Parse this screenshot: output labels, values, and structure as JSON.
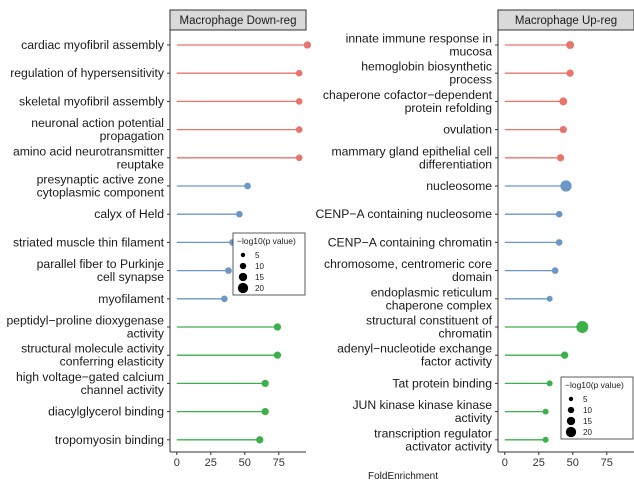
{
  "chart_data": [
    {
      "type": "lollipop",
      "title": "Macrophage Down-reg",
      "xlabel": "FoldEnrichment",
      "xlim": [
        -5,
        95
      ],
      "xticks": [
        0,
        25,
        50,
        75
      ],
      "size_legend": {
        "title": "−log10(p value)",
        "values": [
          5,
          10,
          15,
          20
        ]
      },
      "categories": [
        "cardiac myofibril assembly",
        "regulation of hypersensitivity",
        "skeletal myofibril assembly",
        "neuronal action potential\npropagation",
        "amino acid neurotransmitter\nreuptake",
        "presynaptic active zone\ncytoplasmic component",
        "calyx of Held",
        "striated muscle thin filament",
        "parallel fiber to Purkinje\ncell synapse",
        "myofilament",
        "peptidyl−proline dioxygenase\nactivity",
        "structural molecule activity\nconferring elasticity",
        "high voltage−gated calcium\nchannel activity",
        "diacylglycerol binding",
        "tropomyosin binding"
      ],
      "values": [
        96,
        90,
        90,
        90,
        90,
        52,
        46,
        41,
        38,
        35,
        74,
        74,
        65,
        65,
        61
      ],
      "neg_log10_p": [
        5,
        4,
        4,
        4,
        4,
        4,
        4,
        4,
        4,
        4,
        5,
        5,
        5,
        5,
        5
      ],
      "colors": [
        "#e8756b",
        "#e8756b",
        "#e8756b",
        "#e8756b",
        "#e8756b",
        "#6b96c8",
        "#6b96c8",
        "#6b96c8",
        "#6b96c8",
        "#6b96c8",
        "#3cb04a",
        "#3cb04a",
        "#3cb04a",
        "#3cb04a",
        "#3cb04a"
      ]
    },
    {
      "type": "lollipop",
      "title": "Macrophage Up-reg",
      "xlabel": "FoldEnrichment",
      "xlim": [
        -5,
        95
      ],
      "xticks": [
        0,
        25,
        50,
        75
      ],
      "size_legend": {
        "title": "−log10(p value)",
        "values": [
          5,
          10,
          15,
          20
        ]
      },
      "categories": [
        "innate immune response in\nmucosa",
        "hemoglobin biosynthetic\nprocess",
        "chaperone cofactor−dependent\nprotein refolding",
        "ovulation",
        "mammary gland epithelial cell\ndifferentiation",
        "nucleosome",
        "CENP−A containing nucleosome",
        "CENP−A containing chromatin",
        "chromosome, centromeric core\ndomain",
        "endoplasmic reticulum\nchaperone complex",
        "structural constituent of\nchromatin",
        "adenyl−nucleotide exchange\nfactor activity",
        "Tat protein binding",
        "JUN kinase kinase kinase\nactivity",
        "transcription regulator\nactivator activity"
      ],
      "values": [
        48,
        48,
        43,
        43,
        41,
        45,
        40,
        40,
        37,
        33,
        57,
        44,
        33,
        30,
        30
      ],
      "neg_log10_p": [
        6,
        5,
        6,
        5,
        5,
        11,
        4,
        4,
        4,
        3,
        12,
        5,
        3,
        3,
        3
      ],
      "colors": [
        "#e8756b",
        "#e8756b",
        "#e8756b",
        "#e8756b",
        "#e8756b",
        "#6b96c8",
        "#6b96c8",
        "#6b96c8",
        "#6b96c8",
        "#6b96c8",
        "#3cb04a",
        "#3cb04a",
        "#3cb04a",
        "#3cb04a",
        "#3cb04a"
      ]
    }
  ],
  "shared_xlabel": "FoldEnrichment"
}
